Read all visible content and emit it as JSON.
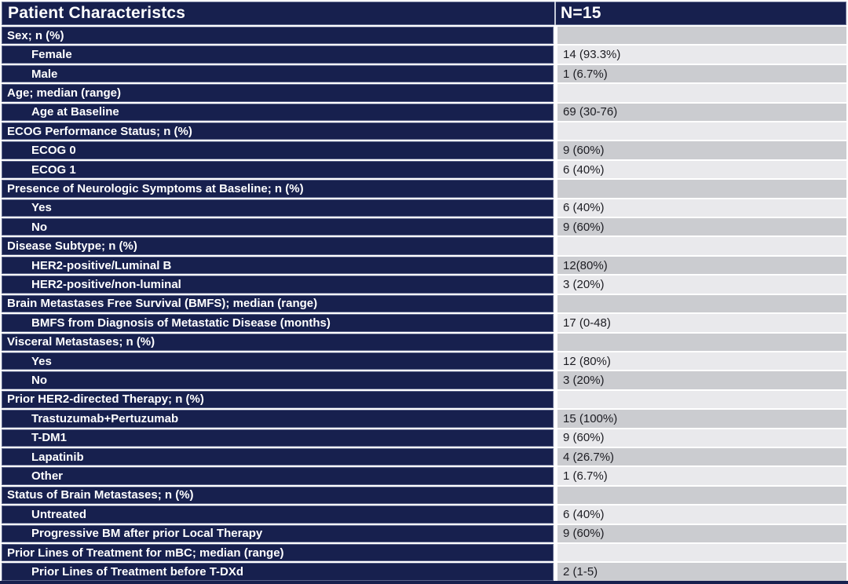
{
  "table": {
    "header": {
      "title": "Patient Characteristcs",
      "n_label": "N=15"
    },
    "rows": [
      {
        "label": "Sex; n (%)",
        "value": "",
        "indent": false
      },
      {
        "label": "Female",
        "value": "14 (93.3%)",
        "indent": true
      },
      {
        "label": "Male",
        "value": "1 (6.7%)",
        "indent": true
      },
      {
        "label": "Age; median (range)",
        "value": "",
        "indent": false
      },
      {
        "label": "Age at Baseline",
        "value": "69 (30-76)",
        "indent": true
      },
      {
        "label": "ECOG Performance Status; n (%)",
        "value": "",
        "indent": false
      },
      {
        "label": "ECOG 0",
        "value": "9 (60%)",
        "indent": true
      },
      {
        "label": "ECOG 1",
        "value": "6 (40%)",
        "indent": true
      },
      {
        "label": "Presence of Neurologic Symptoms at Baseline; n (%)",
        "value": "",
        "indent": false
      },
      {
        "label": "Yes",
        "value": "6 (40%)",
        "indent": true
      },
      {
        "label": "No",
        "value": "9 (60%)",
        "indent": true
      },
      {
        "label": "Disease Subtype; n (%)",
        "value": "",
        "indent": false
      },
      {
        "label": "HER2-positive/Luminal B",
        "value": "12(80%)",
        "indent": true
      },
      {
        "label": "HER2-positive/non-luminal",
        "value": "3 (20%)",
        "indent": true
      },
      {
        "label": "Brain Metastases Free Survival (BMFS); median (range)",
        "value": "",
        "indent": false
      },
      {
        "label": "BMFS from Diagnosis of Metastatic Disease (months)",
        "value": "17 (0-48)",
        "indent": true
      },
      {
        "label": "Visceral Metastases; n (%)",
        "value": "",
        "indent": false
      },
      {
        "label": "Yes",
        "value": "12 (80%)",
        "indent": true
      },
      {
        "label": "No",
        "value": "3 (20%)",
        "indent": true
      },
      {
        "label": "Prior HER2-directed Therapy; n (%)",
        "value": "",
        "indent": false
      },
      {
        "label": "Trastuzumab+Pertuzumab",
        "value": "15 (100%)",
        "indent": true
      },
      {
        "label": "T-DM1",
        "value": "9 (60%)",
        "indent": true
      },
      {
        "label": "Lapatinib",
        "value": "4 (26.7%)",
        "indent": true
      },
      {
        "label": "Other",
        "value": "1 (6.7%)",
        "indent": true
      },
      {
        "label": "Status of Brain Metastases; n (%)",
        "value": "",
        "indent": false
      },
      {
        "label": "Untreated",
        "value": "6 (40%)",
        "indent": true
      },
      {
        "label": "Progressive BM after prior Local Therapy",
        "value": "9 (60%)",
        "indent": true
      },
      {
        "label": "Prior Lines of Treatment for mBC; median (range)",
        "value": "",
        "indent": false
      },
      {
        "label": "Prior Lines of Treatment before T-DXd",
        "value": "2 (1-5)",
        "indent": true
      }
    ]
  },
  "colors": {
    "navy": "#17204e",
    "value_cell_dark": "#cbccd0",
    "value_cell_light": "#e9e9ec",
    "separator": "#ffffff",
    "header_text": "#ffffff",
    "value_text": "#1c1c22"
  }
}
